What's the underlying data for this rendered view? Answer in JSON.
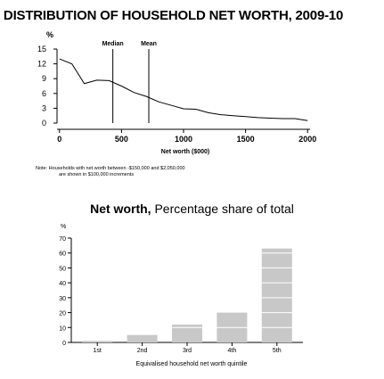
{
  "page": {
    "title": ". DISTRIBUTION OF HOUSEHOLD NET WORTH, 2009-10"
  },
  "note": {
    "line1": "Note: Households with net worth between -$150,000 and $2,050,000",
    "line2": "are shown in $100,000 increments"
  },
  "chart_data": [
    {
      "type": "line",
      "title": "",
      "ylabel": "%",
      "xlabel": "Net worth ($000)",
      "xlim": [
        -20,
        2020
      ],
      "ylim": [
        0,
        15
      ],
      "x_ticks": [
        0,
        500,
        1000,
        1500,
        2000
      ],
      "y_ticks": [
        0,
        3,
        6,
        9,
        12,
        15
      ],
      "grid": false,
      "x": [
        0,
        100,
        200,
        300,
        400,
        500,
        600,
        700,
        800,
        900,
        1000,
        1100,
        1200,
        1300,
        1400,
        1500,
        1600,
        1700,
        1800,
        1900,
        2000
      ],
      "values": [
        13,
        12,
        8,
        8.7,
        8.6,
        7.5,
        6.2,
        5.4,
        4.3,
        3.6,
        2.9,
        2.8,
        2.1,
        1.7,
        1.5,
        1.3,
        1.1,
        1.0,
        0.9,
        0.9,
        0.5
      ],
      "reference_lines": [
        {
          "label": "Median",
          "x": 430
        },
        {
          "label": "Mean",
          "x": 720
        }
      ]
    },
    {
      "type": "bar",
      "title_bold": "Net worth,",
      "title_rest": " Percentage share of total",
      "ylabel": "%",
      "xlabel": "Equivalised household net worth quintile",
      "categories": [
        "1st",
        "2nd",
        "3rd",
        "4th",
        "5th"
      ],
      "values": [
        1,
        5,
        12,
        20,
        63
      ],
      "ylim": [
        0,
        70
      ],
      "y_ticks": [
        0,
        10,
        20,
        30,
        40,
        50,
        60,
        70
      ],
      "grid": false,
      "bar_color": "#c8c8c8"
    }
  ]
}
